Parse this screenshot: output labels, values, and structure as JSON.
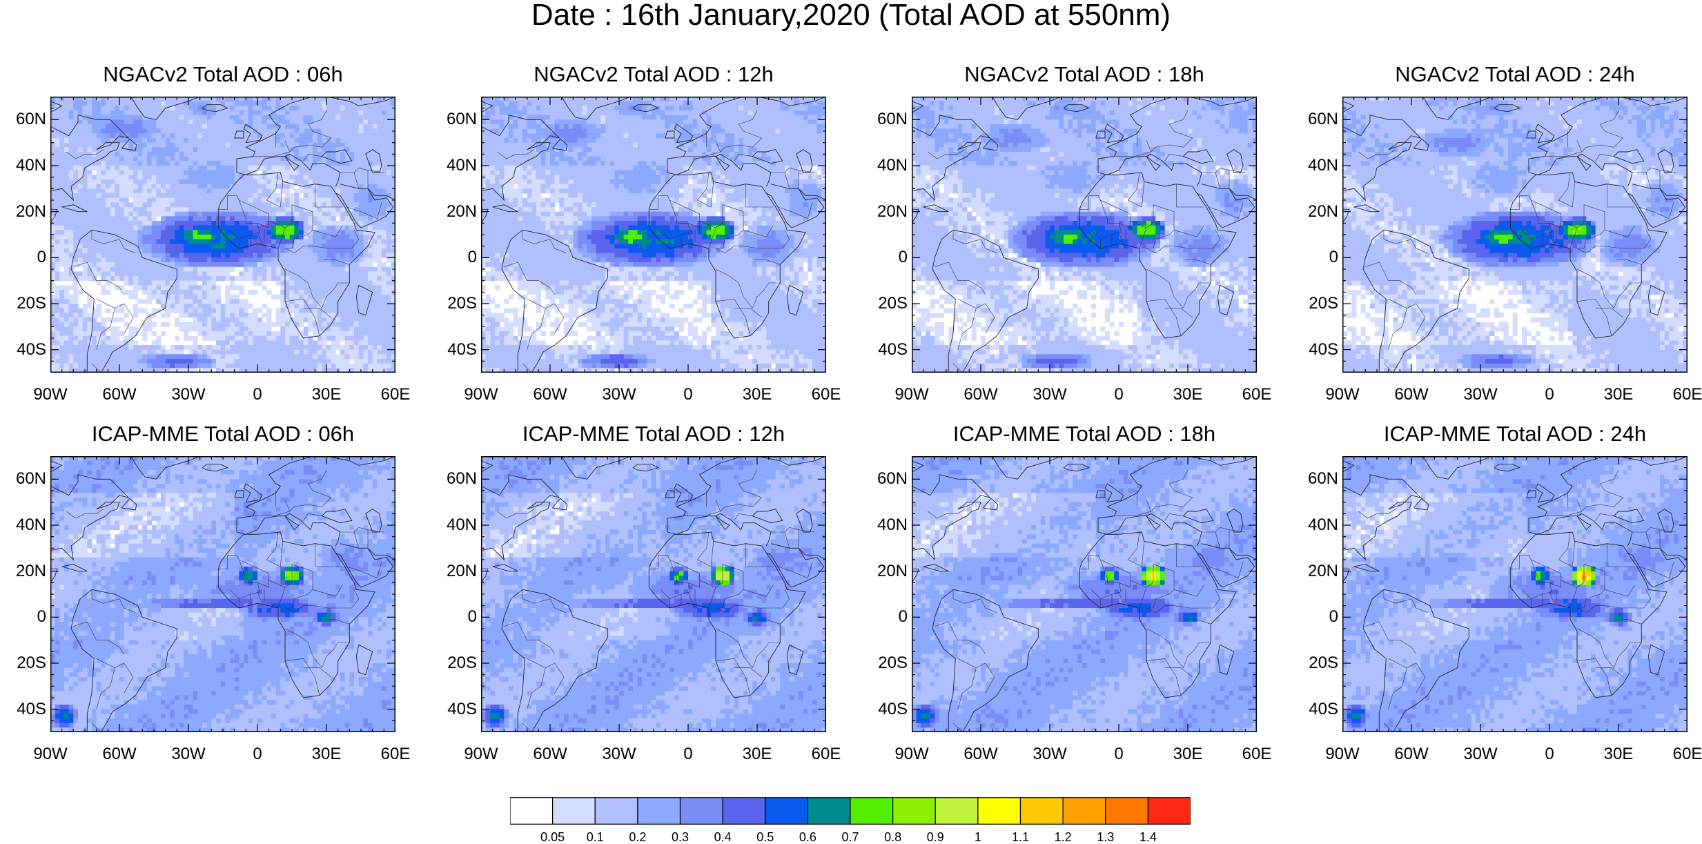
{
  "title": "Date : 16th January,2020 (Total AOD at 550nm)",
  "axes": {
    "lat_ticks": [
      "60N",
      "40N",
      "20N",
      "0",
      "20S",
      "40S"
    ],
    "lon_ticks": [
      "90W",
      "60W",
      "30W",
      "0",
      "30E",
      "60E"
    ],
    "lat_range": [
      -50,
      70
    ],
    "lon_range": [
      -90,
      60
    ]
  },
  "panels": [
    {
      "title": "NGACv2 Total AOD : 06h",
      "model": "NGACv2",
      "hour": 6
    },
    {
      "title": "NGACv2 Total AOD : 12h",
      "model": "NGACv2",
      "hour": 12
    },
    {
      "title": "NGACv2 Total AOD : 18h",
      "model": "NGACv2",
      "hour": 18
    },
    {
      "title": "NGACv2 Total AOD : 24h",
      "model": "NGACv2",
      "hour": 24
    },
    {
      "title": "ICAP-MME Total AOD : 06h",
      "model": "ICAP-MME",
      "hour": 6
    },
    {
      "title": "ICAP-MME Total AOD : 12h",
      "model": "ICAP-MME",
      "hour": 12
    },
    {
      "title": "ICAP-MME Total AOD : 18h",
      "model": "ICAP-MME",
      "hour": 18
    },
    {
      "title": "ICAP-MME Total AOD : 24h",
      "model": "ICAP-MME",
      "hour": 24
    }
  ],
  "colorbar": {
    "labels": [
      "0.05",
      "0.1",
      "0.2",
      "0.3",
      "0.4",
      "0.5",
      "0.6",
      "0.7",
      "0.8",
      "0.9",
      "1",
      "1.1",
      "1.2",
      "1.3",
      "1.4"
    ],
    "colors": [
      "#ffffff",
      "#d4dcff",
      "#b0c0ff",
      "#8ca8ff",
      "#7a8cf8",
      "#5a64ec",
      "#0a5af0",
      "#008c8c",
      "#52f000",
      "#8ef000",
      "#c0f23c",
      "#ffff00",
      "#ffc800",
      "#ffa000",
      "#ff7800",
      "#ff2814"
    ]
  }
}
